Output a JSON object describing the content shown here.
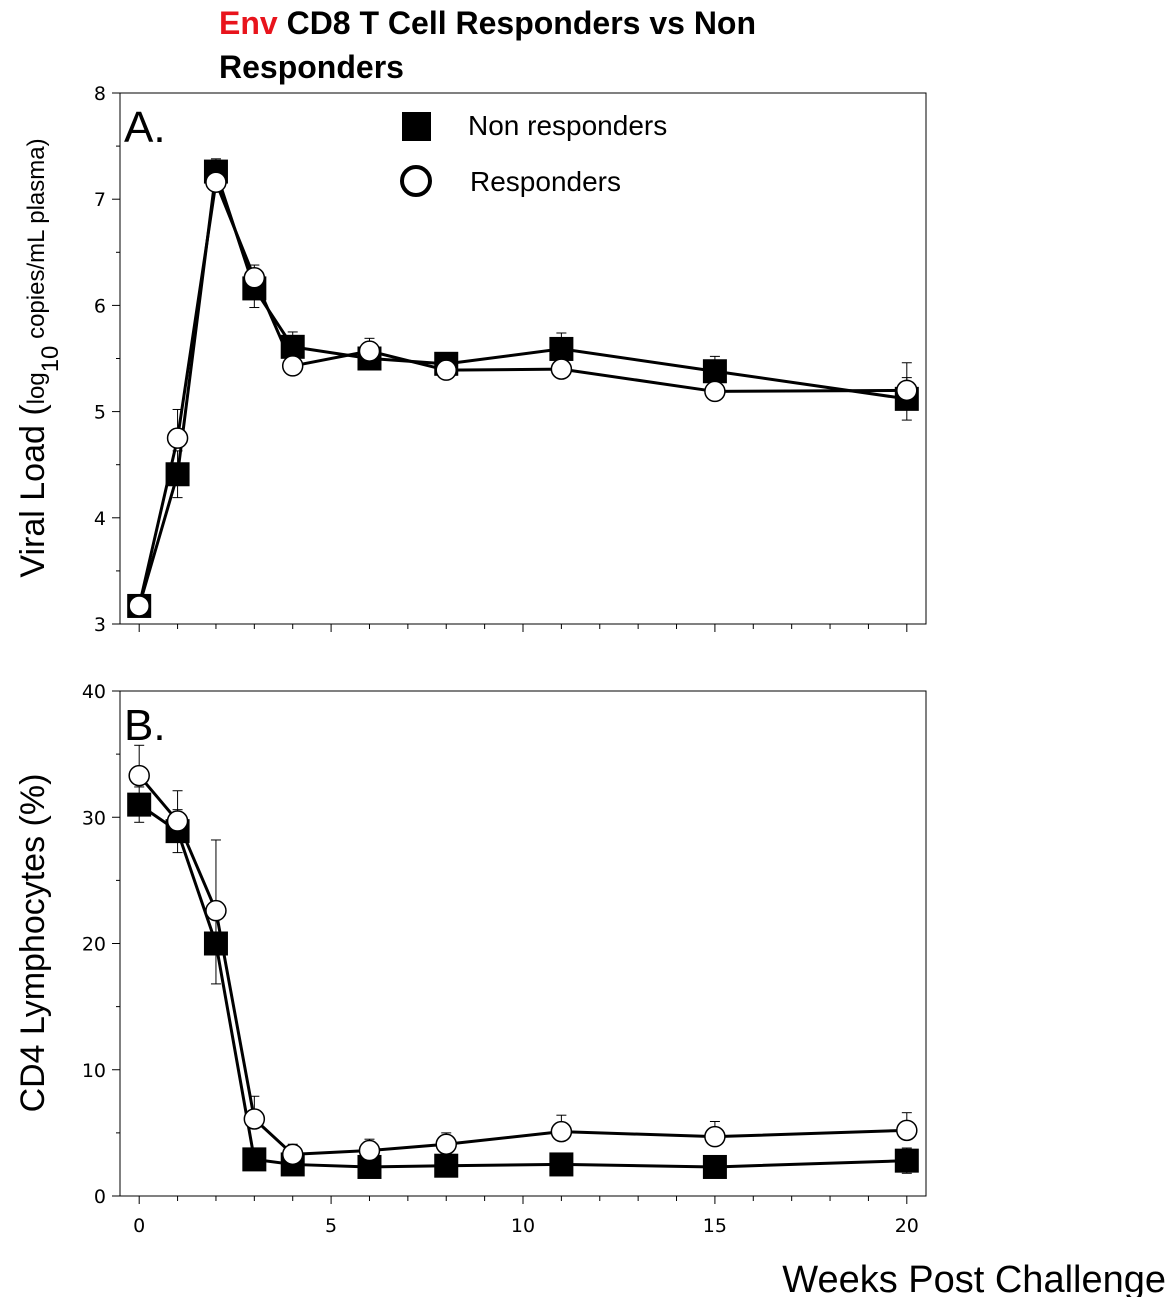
{
  "chart_data": [
    {
      "type": "line",
      "panel_label": "A.",
      "title_accent": "Env",
      "title_rest": " CD8 T Cell Responders vs Non",
      "title_line2": "Responders",
      "ylabel_main": "Viral Load (",
      "ylabel_log": "log",
      "ylabel_sub": "10",
      "ylabel_rest": " copies/mL plasma)",
      "ylim": [
        3,
        8
      ],
      "yticks": [
        "3",
        "4",
        "5",
        "6",
        "7",
        "8"
      ],
      "xlim": [
        -0.5,
        20.5
      ],
      "legend_placement": "top-center",
      "series": [
        {
          "name": "Non responders",
          "marker": "filled-square",
          "x": [
            0,
            1,
            2,
            3,
            4,
            6,
            8,
            11,
            15,
            20
          ],
          "y": [
            3.17,
            4.41,
            7.26,
            6.16,
            5.61,
            5.5,
            5.45,
            5.59,
            5.38,
            5.12
          ],
          "error": [
            0.03,
            0.22,
            0.12,
            0.18,
            0.14,
            0.06,
            0.06,
            0.15,
            0.14,
            0.2
          ]
        },
        {
          "name": "Responders",
          "marker": "open-circle",
          "x": [
            0,
            1,
            2,
            3,
            4,
            6,
            8,
            11,
            15,
            20
          ],
          "y": [
            3.17,
            4.75,
            7.16,
            6.26,
            5.43,
            5.57,
            5.39,
            5.4,
            5.19,
            5.2
          ],
          "error": [
            0.03,
            0.27,
            0.08,
            0.12,
            0.12,
            0.12,
            0.12,
            0.16,
            0.28,
            0.26
          ]
        }
      ]
    },
    {
      "type": "line",
      "panel_label": "B.",
      "ylabel": "CD4 Lymphocytes (%)",
      "xlabel": "Weeks Post Challenge",
      "ylim": [
        0,
        40
      ],
      "yticks": [
        "0",
        "10",
        "20",
        "30",
        "40"
      ],
      "xlim": [
        -0.5,
        20.5
      ],
      "xticks": [
        "0",
        "5",
        "10",
        "15",
        "20"
      ],
      "series": [
        {
          "name": "Non responders",
          "marker": "filled-square",
          "x": [
            0,
            1,
            2,
            3,
            4,
            6,
            8,
            11,
            15,
            20
          ],
          "y": [
            31.0,
            28.9,
            20.0,
            2.9,
            2.5,
            2.3,
            2.4,
            2.5,
            2.3,
            2.8
          ],
          "error": [
            1.4,
            1.7,
            3.2,
            0.3,
            0.4,
            0.4,
            0.4,
            0.5,
            0.5,
            1.0
          ]
        },
        {
          "name": "Responders",
          "marker": "open-circle",
          "x": [
            0,
            1,
            2,
            3,
            4,
            6,
            8,
            11,
            15,
            20
          ],
          "y": [
            33.3,
            29.7,
            22.6,
            6.1,
            3.3,
            3.6,
            4.1,
            5.1,
            4.7,
            5.2
          ],
          "error": [
            2.4,
            2.4,
            5.6,
            1.8,
            0.8,
            0.9,
            0.9,
            1.3,
            1.2,
            1.4
          ]
        }
      ]
    }
  ]
}
